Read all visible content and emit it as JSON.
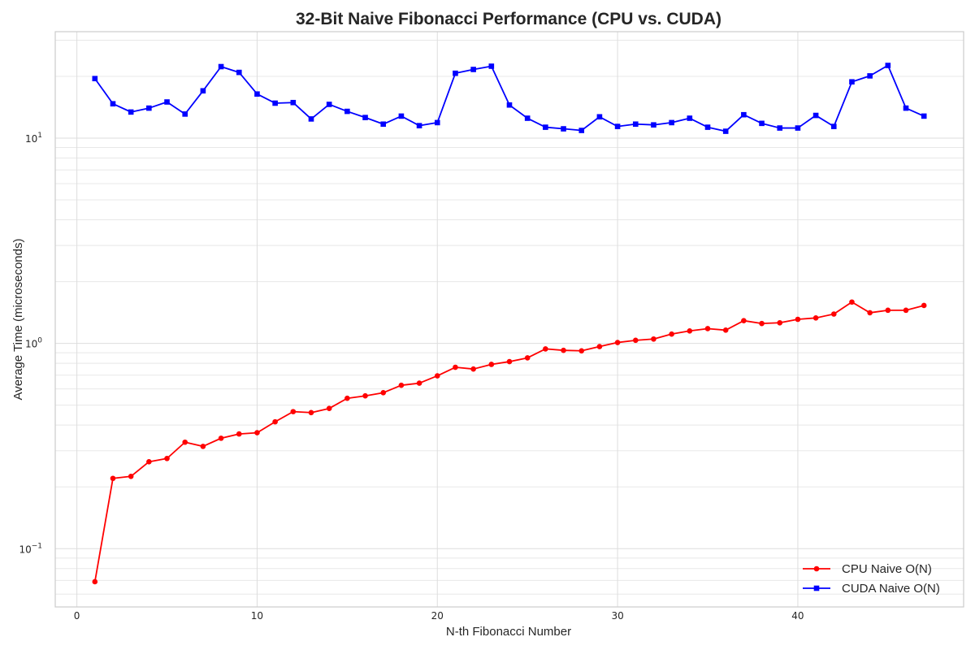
{
  "chart_data": {
    "type": "line",
    "title": "32-Bit Naive Fibonacci Performance (CPU vs. CUDA)",
    "xlabel": "N-th Fibonacci Number",
    "ylabel": "Average Time (microseconds)",
    "yscale": "log",
    "xlim": [
      -1.2,
      49.2
    ],
    "ylim": [
      0.052,
      33
    ],
    "x_ticks": [
      0,
      10,
      20,
      30,
      40
    ],
    "y_ticks": [
      {
        "value": 0.1,
        "base": "10",
        "exp": "−1"
      },
      {
        "value": 1,
        "base": "10",
        "exp": "0"
      },
      {
        "value": 10,
        "base": "10",
        "exp": "1"
      }
    ],
    "grid": true,
    "legend_position": "bottom-right",
    "x": [
      1,
      2,
      3,
      4,
      5,
      6,
      7,
      8,
      9,
      10,
      11,
      12,
      13,
      14,
      15,
      16,
      17,
      18,
      19,
      20,
      21,
      22,
      23,
      24,
      25,
      26,
      27,
      28,
      29,
      30,
      31,
      32,
      33,
      34,
      35,
      36,
      37,
      38,
      39,
      40,
      41,
      42,
      43,
      44,
      45,
      46,
      47
    ],
    "series": [
      {
        "name": "CPU Naive O(N)",
        "color": "#ff0000",
        "marker": "circle",
        "values": [
          0.069,
          0.22,
          0.225,
          0.265,
          0.275,
          0.33,
          0.315,
          0.345,
          0.362,
          0.367,
          0.415,
          0.465,
          0.46,
          0.482,
          0.54,
          0.555,
          0.575,
          0.625,
          0.64,
          0.695,
          0.765,
          0.75,
          0.79,
          0.815,
          0.85,
          0.94,
          0.925,
          0.92,
          0.965,
          1.01,
          1.035,
          1.05,
          1.11,
          1.15,
          1.18,
          1.16,
          1.29,
          1.25,
          1.26,
          1.31,
          1.33,
          1.39,
          1.59,
          1.41,
          1.45,
          1.45,
          1.53
        ]
      },
      {
        "name": "CUDA Naive O(N)",
        "color": "#0000ff",
        "marker": "square",
        "values": [
          19.5,
          14.7,
          13.4,
          14.0,
          15.0,
          13.1,
          17.0,
          22.3,
          20.9,
          16.4,
          14.8,
          14.9,
          12.4,
          14.6,
          13.5,
          12.6,
          11.7,
          12.8,
          11.5,
          11.9,
          20.7,
          21.6,
          22.4,
          14.5,
          12.5,
          11.3,
          11.1,
          10.9,
          12.7,
          11.4,
          11.7,
          11.6,
          11.9,
          12.5,
          11.3,
          10.8,
          13.0,
          11.8,
          11.2,
          11.2,
          12.9,
          11.4,
          18.8,
          20.1,
          22.6,
          14.0,
          12.8
        ]
      }
    ]
  }
}
